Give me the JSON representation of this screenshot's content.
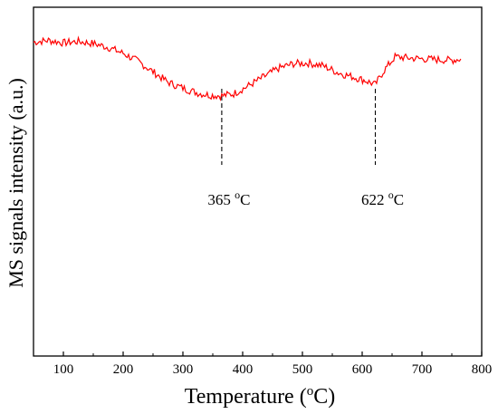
{
  "chart_data": {
    "type": "line",
    "title": "",
    "xlabel": "Temperature",
    "xlabel_unit": "(°C)",
    "xlabel_parts": {
      "pre": "Temperature (",
      "sup": "o",
      "post": "C)"
    },
    "ylabel": "MS signals intensity (a.u.)",
    "xlim": [
      50,
      800
    ],
    "ylim": [
      0,
      1
    ],
    "x_ticks": [
      100,
      200,
      300,
      400,
      500,
      600,
      700,
      800
    ],
    "y_ticks": [],
    "grid": false,
    "legend": "none",
    "series": [
      {
        "color": "#ff0000",
        "x": [
          50,
          75,
          100,
          125,
          150,
          175,
          200,
          225,
          250,
          275,
          300,
          325,
          345,
          365,
          385,
          410,
          435,
          460,
          485,
          510,
          535,
          560,
          585,
          605,
          622,
          635,
          655,
          675,
          700,
          725,
          750,
          765
        ],
        "y": [
          0.9,
          0.905,
          0.898,
          0.902,
          0.896,
          0.885,
          0.868,
          0.845,
          0.815,
          0.785,
          0.768,
          0.754,
          0.748,
          0.746,
          0.752,
          0.775,
          0.8,
          0.825,
          0.838,
          0.84,
          0.832,
          0.812,
          0.8,
          0.79,
          0.778,
          0.815,
          0.858,
          0.855,
          0.852,
          0.85,
          0.848,
          0.852
        ]
      }
    ],
    "annotations": [
      {
        "x": 365,
        "value": "365",
        "unit_sup": "o",
        "unit": "C"
      },
      {
        "x": 622,
        "value": "622",
        "unit_sup": "o",
        "unit": "C"
      }
    ],
    "colors": {
      "series": "#ff0000",
      "axis": "#000000",
      "marker_line": "#000000"
    }
  }
}
